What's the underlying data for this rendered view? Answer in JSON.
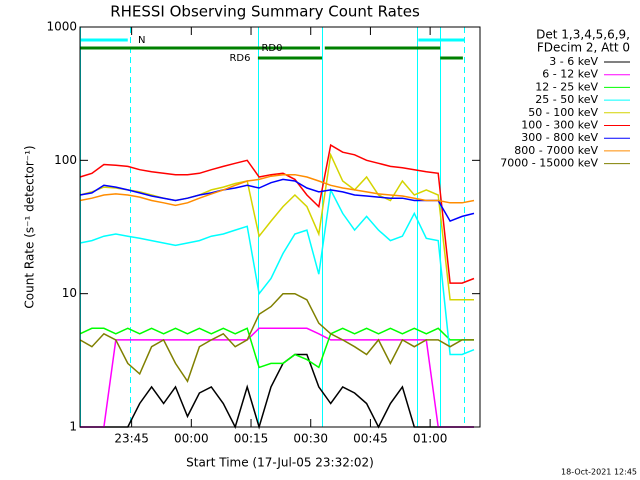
{
  "chart_data": {
    "type": "line",
    "title": "RHESSI Observing Summary Count Rates",
    "x_label": "Start Time (17-Jul-05 23:32:02)",
    "y_label": "Count Rate (s⁻¹ detector⁻¹)",
    "legend_header": [
      "Det 1,3,4,5,6,9,",
      "FDecim 2, Att 0"
    ],
    "footer": "18-Oct-2021 12:45",
    "log_scale": true,
    "xlim": [
      0,
      100.5
    ],
    "xticks": [
      {
        "value": 12.97,
        "label": "23:45"
      },
      {
        "value": 27.97,
        "label": "00:00"
      },
      {
        "value": 42.97,
        "label": "00:15"
      },
      {
        "value": 57.97,
        "label": "00:30"
      },
      {
        "value": 72.97,
        "label": "00:45"
      },
      {
        "value": 87.97,
        "label": "01:00"
      }
    ],
    "ylim": [
      1,
      1000
    ],
    "yticks": [
      1,
      10,
      100,
      1000
    ],
    "x": [
      0,
      3,
      6,
      9,
      12,
      15,
      18,
      21,
      24,
      27,
      30,
      33,
      36,
      39,
      42,
      45,
      48,
      51,
      54,
      57,
      60,
      63,
      66,
      69,
      72,
      75,
      78,
      81,
      84,
      87,
      90,
      93,
      96,
      99
    ],
    "series": [
      {
        "name": "3 - 6 keV",
        "color": "#000000",
        "values": [
          1,
          1,
          1,
          1,
          1,
          1.5,
          2,
          1.5,
          2,
          1.2,
          1.8,
          2,
          1.5,
          1,
          2,
          1,
          2,
          3,
          3.5,
          3.5,
          2,
          1.5,
          2,
          1.8,
          1.5,
          1,
          1.5,
          2,
          1,
          1,
          1,
          1,
          1,
          1
        ]
      },
      {
        "name": "6 - 12 keV",
        "color": "#ff00ff",
        "values": [
          1,
          1,
          1,
          4.5,
          4.5,
          4.5,
          4.5,
          4.5,
          4.5,
          4.5,
          4.5,
          4.5,
          4.5,
          4.5,
          4.5,
          5.5,
          5.5,
          5.5,
          5.5,
          5.5,
          5,
          4.5,
          4.5,
          4.5,
          4.5,
          4.5,
          4.5,
          4.5,
          4.5,
          4.5,
          1,
          1,
          1,
          1
        ]
      },
      {
        "name": "12 - 25 keV",
        "color": "#00ff00",
        "values": [
          5,
          5.5,
          5.5,
          5,
          5.5,
          5,
          5.5,
          5,
          5.5,
          5,
          5.5,
          5,
          5.5,
          5,
          5.5,
          2.8,
          3,
          3,
          3.5,
          3.2,
          2.8,
          5,
          5.5,
          5,
          5.5,
          5,
          5.5,
          5,
          5.5,
          5,
          5.5,
          4.5,
          4.5,
          4.5
        ]
      },
      {
        "name": "25 - 50 keV",
        "color": "#00ffff",
        "values": [
          24,
          25,
          27,
          28,
          27,
          26,
          25,
          24,
          23,
          24,
          25,
          27,
          28,
          30,
          32,
          10,
          13,
          20,
          28,
          30,
          14,
          60,
          40,
          30,
          38,
          30,
          25,
          27,
          40,
          26,
          25,
          3.5,
          3.5,
          3.8
        ]
      },
      {
        "name": "50 - 100 keV",
        "color": "#d4d400",
        "values": [
          55,
          58,
          63,
          62,
          60,
          58,
          55,
          52,
          50,
          52,
          55,
          60,
          63,
          67,
          70,
          27,
          35,
          45,
          55,
          45,
          28,
          110,
          70,
          60,
          75,
          55,
          50,
          70,
          55,
          60,
          55,
          9,
          9,
          9
        ]
      },
      {
        "name": "100 - 300 keV",
        "color": "#ff0000",
        "values": [
          75,
          80,
          93,
          92,
          90,
          85,
          82,
          80,
          78,
          78,
          80,
          85,
          90,
          95,
          100,
          75,
          78,
          80,
          72,
          55,
          45,
          130,
          115,
          110,
          100,
          95,
          90,
          88,
          85,
          82,
          80,
          12,
          12,
          13
        ]
      },
      {
        "name": "300 - 800 keV",
        "color": "#0000ff",
        "values": [
          55,
          57,
          65,
          63,
          60,
          57,
          54,
          52,
          50,
          52,
          55,
          57,
          60,
          62,
          65,
          62,
          68,
          72,
          70,
          62,
          58,
          60,
          58,
          55,
          54,
          53,
          52,
          52,
          50,
          50,
          50,
          35,
          38,
          40
        ]
      },
      {
        "name": "800 - 7000 keV",
        "color": "#ff8c00",
        "values": [
          50,
          52,
          55,
          56,
          55,
          53,
          50,
          48,
          46,
          48,
          52,
          56,
          60,
          65,
          70,
          72,
          76,
          78,
          78,
          75,
          70,
          65,
          62,
          60,
          58,
          56,
          55,
          54,
          52,
          50,
          50,
          48,
          48,
          50
        ]
      },
      {
        "name": "7000 - 15000 keV",
        "color": "#808000",
        "values": [
          4.5,
          4,
          5,
          4.5,
          3,
          2.5,
          4,
          4.5,
          3,
          2.2,
          4,
          4.5,
          5,
          4,
          4.5,
          7,
          8,
          10,
          10,
          9,
          6,
          5,
          4.5,
          4,
          3.5,
          4.5,
          3,
          4.5,
          4,
          4.5,
          4.5,
          4,
          4.5,
          4.5
        ]
      }
    ],
    "flags": [
      {
        "label": "N",
        "color": "#00ffff",
        "spans": [
          [
            0,
            12
          ],
          [
            85,
            96.5
          ]
        ]
      },
      {
        "label": "RD0",
        "color": "#008000",
        "spans": [
          [
            0,
            60.3
          ],
          [
            61.5,
            90.5
          ]
        ]
      },
      {
        "label": "RD6",
        "color": "#008000",
        "spans": [
          [
            44.7,
            60.8
          ],
          [
            90.5,
            96.2
          ]
        ]
      }
    ]
  }
}
